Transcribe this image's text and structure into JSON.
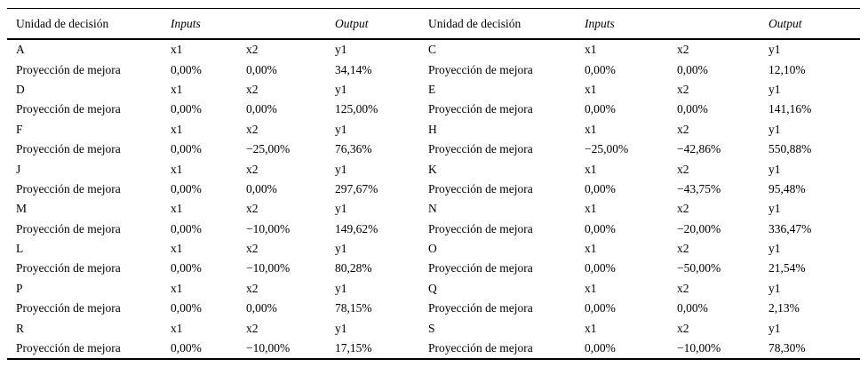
{
  "header": {
    "unit": "Unidad de decisión",
    "inputs": "Inputs",
    "output": "Output"
  },
  "vars": {
    "x1": "x1",
    "x2": "x2",
    "y1": "y1"
  },
  "projection_label": "Proyección de mejora",
  "rows": [
    {
      "left": {
        "unit": "A",
        "x1": "0,00%",
        "x2": "0,00%",
        "y1": "34,14%"
      },
      "right": {
        "unit": "C",
        "x1": "0,00%",
        "x2": "0,00%",
        "y1": "12,10%"
      }
    },
    {
      "left": {
        "unit": "D",
        "x1": "0,00%",
        "x2": "0,00%",
        "y1": "125,00%"
      },
      "right": {
        "unit": "E",
        "x1": "0,00%",
        "x2": "0,00%",
        "y1": "141,16%"
      }
    },
    {
      "left": {
        "unit": "F",
        "x1": "0,00%",
        "x2": "−25,00%",
        "y1": "76,36%"
      },
      "right": {
        "unit": "H",
        "x1": "−25,00%",
        "x2": "−42,86%",
        "y1": "550,88%"
      }
    },
    {
      "left": {
        "unit": "J",
        "x1": "0,00%",
        "x2": "0,00%",
        "y1": "297,67%"
      },
      "right": {
        "unit": "K",
        "x1": "0,00%",
        "x2": "−43,75%",
        "y1": "95,48%"
      }
    },
    {
      "left": {
        "unit": "M",
        "x1": "0,00%",
        "x2": "−10,00%",
        "y1": "149,62%"
      },
      "right": {
        "unit": "N",
        "x1": "0,00%",
        "x2": "−20,00%",
        "y1": "336,47%"
      }
    },
    {
      "left": {
        "unit": "L",
        "x1": "0,00%",
        "x2": "−10,00%",
        "y1": "80,28%"
      },
      "right": {
        "unit": "O",
        "x1": "0,00%",
        "x2": "−50,00%",
        "y1": "21,54%"
      }
    },
    {
      "left": {
        "unit": "P",
        "x1": "0,00%",
        "x2": "0,00%",
        "y1": "78,15%"
      },
      "right": {
        "unit": "Q",
        "x1": "0,00%",
        "x2": "0,00%",
        "y1": "2,13%"
      }
    },
    {
      "left": {
        "unit": "R",
        "x1": "0,00%",
        "x2": "−10,00%",
        "y1": "17,15%"
      },
      "right": {
        "unit": "S",
        "x1": "0,00%",
        "x2": "−10,00%",
        "y1": "78,30%"
      }
    }
  ]
}
